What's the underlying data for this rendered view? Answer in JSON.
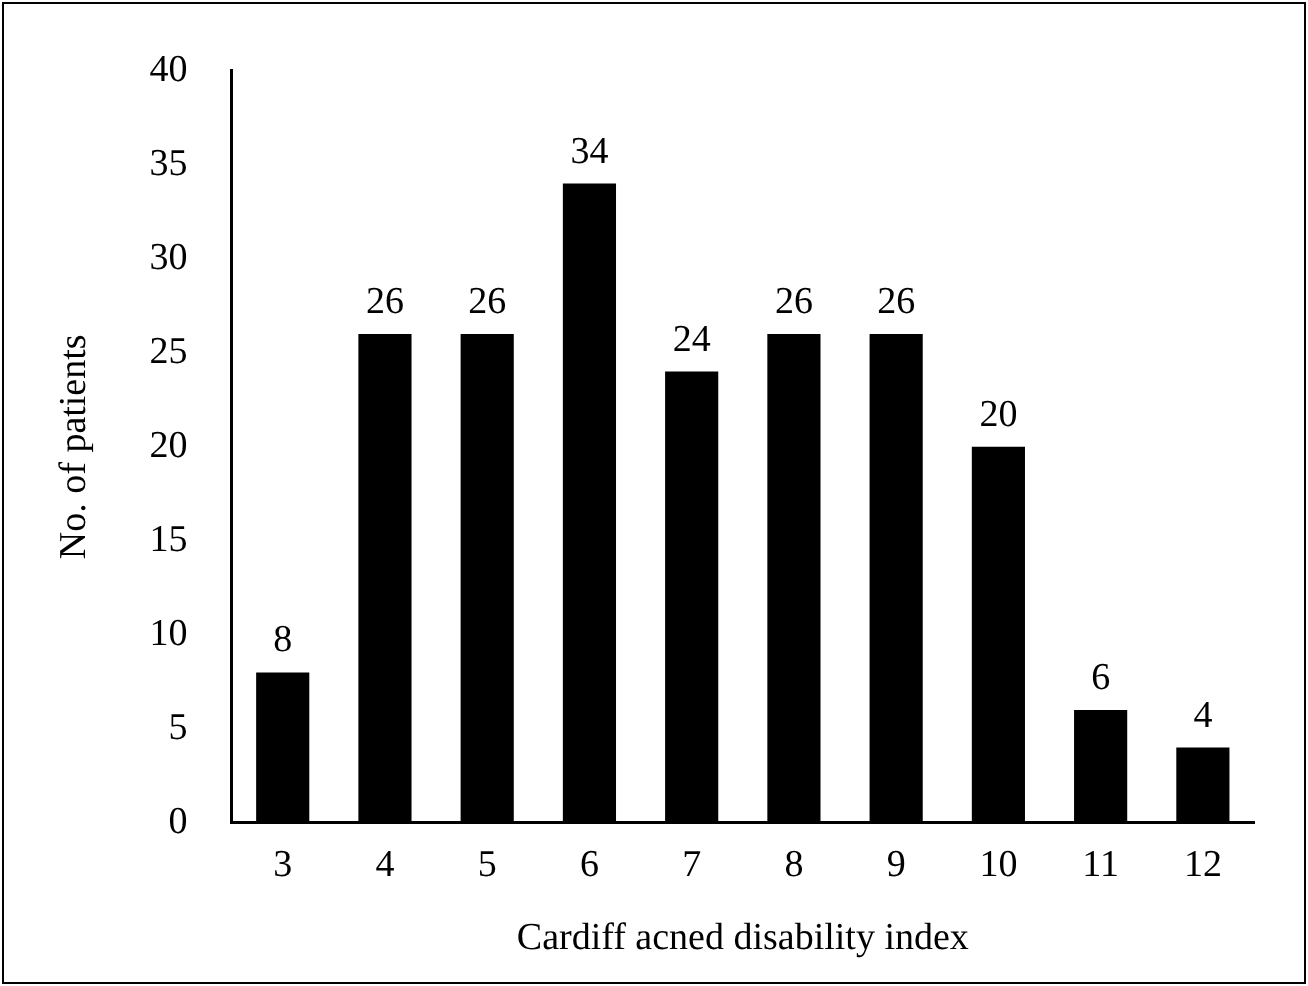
{
  "chart_data": {
    "type": "bar",
    "xlabel": "Cardiff acned disability index",
    "ylabel": "No. of patients",
    "categories": [
      "3",
      "4",
      "5",
      "6",
      "7",
      "8",
      "9",
      "10",
      "11",
      "12"
    ],
    "values": [
      8,
      26,
      26,
      34,
      24,
      26,
      26,
      20,
      6,
      4
    ],
    "color": "#000000",
    "ylim": [
      0,
      40
    ],
    "yticks": [
      0,
      5,
      10,
      15,
      20,
      25,
      30,
      35,
      40
    ],
    "grid": false,
    "legend": false,
    "data_labels": true
  }
}
